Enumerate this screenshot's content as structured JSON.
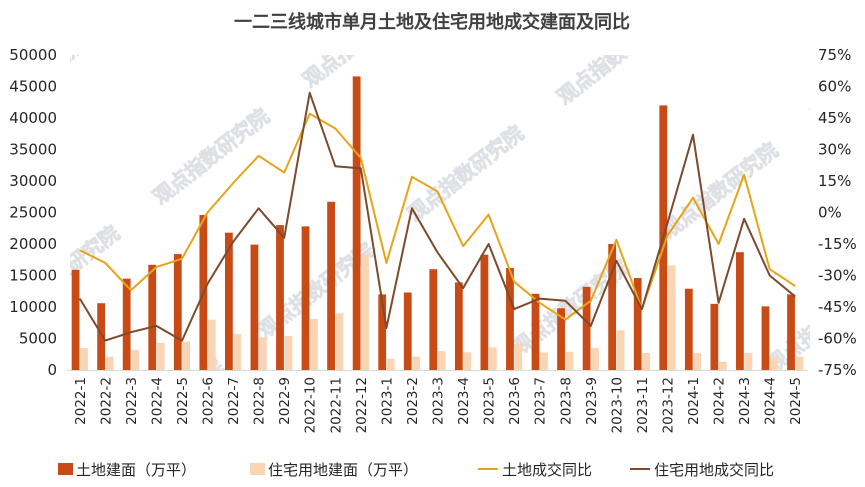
{
  "chart_data": {
    "type": "bar",
    "title": "一二三线城市单月土地及住宅用地成交建面及同比",
    "categories": [
      "2022-1",
      "2022-2",
      "2022-3",
      "2022-4",
      "2022-5",
      "2022-6",
      "2022-7",
      "2022-8",
      "2022-9",
      "2022-10",
      "2022-11",
      "2022-12",
      "2023-1",
      "2023-2",
      "2023-3",
      "2023-4",
      "2023-5",
      "2023-6",
      "2023-7",
      "2023-8",
      "2023-9",
      "2023-10",
      "2023-11",
      "2023-12",
      "2024-1",
      "2024-2",
      "2024-3",
      "2024-4",
      "2024-5"
    ],
    "y_left": {
      "ylim": [
        0,
        50000
      ],
      "ticks": [
        "0",
        "5000",
        "10000",
        "15000",
        "20000",
        "25000",
        "30000",
        "35000",
        "40000",
        "45000",
        "50000"
      ]
    },
    "y_right": {
      "ylim": [
        -75,
        75
      ],
      "ticks": [
        "-75%",
        "-60%",
        "-45%",
        "-30%",
        "-15%",
        "0%",
        "15%",
        "30%",
        "45%",
        "60%",
        "75%"
      ]
    },
    "series": [
      {
        "name": "土地建面（万平）",
        "kind": "bar",
        "color": "#C84B16",
        "values": [
          15900,
          10600,
          14500,
          16700,
          18400,
          24600,
          21800,
          19900,
          23000,
          22800,
          26700,
          46600,
          12000,
          12300,
          16000,
          13900,
          18300,
          16200,
          12100,
          9800,
          13200,
          20000,
          14600,
          42000,
          12900,
          10500,
          18700,
          10100,
          12000
        ]
      },
      {
        "name": "住宅用地建面（万平）",
        "kind": "bar",
        "color": "#F9D4B5",
        "values": [
          3500,
          2100,
          3200,
          4300,
          4500,
          8000,
          5700,
          5200,
          5400,
          8100,
          9000,
          18400,
          1800,
          2100,
          3000,
          2800,
          3600,
          4200,
          2800,
          2900,
          3500,
          6300,
          2700,
          16600,
          2700,
          1300,
          2700,
          2000,
          2100
        ]
      },
      {
        "name": "土地成交同比",
        "kind": "line",
        "color": "#E6A419",
        "axis": "right",
        "values": [
          -18,
          -24,
          -37,
          -26,
          -22,
          0,
          14,
          27,
          19,
          47,
          40,
          26,
          -24,
          17,
          10,
          -16,
          -1,
          -33,
          -43,
          -51,
          -42,
          -13,
          -46,
          -11,
          7,
          -15,
          18,
          -27,
          -35
        ]
      },
      {
        "name": "住宅用地成交同比",
        "kind": "line",
        "color": "#7E4A2C",
        "axis": "right",
        "values": [
          -41,
          -61,
          -57,
          -54,
          -61,
          -34,
          -14,
          2,
          -12,
          57,
          22,
          21,
          -55,
          2,
          -19,
          -36,
          -15,
          -46,
          -41,
          -42,
          -54,
          -23,
          -46,
          -5,
          37,
          -43,
          -3,
          -30,
          -40
        ]
      }
    ],
    "legend": {
      "placement": "bottom"
    },
    "grid": false,
    "watermark": "观点指数研究院"
  }
}
